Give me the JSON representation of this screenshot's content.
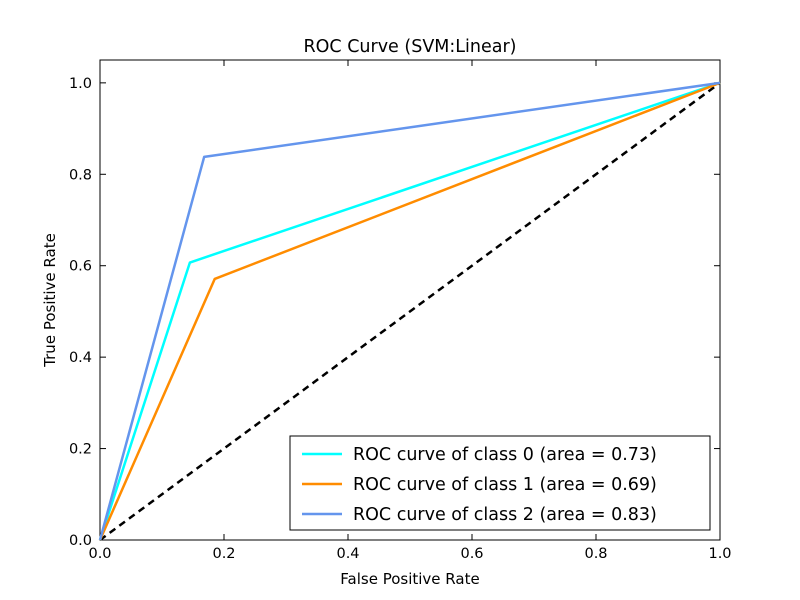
{
  "chart_data": {
    "type": "line",
    "title": "ROC Curve (SVM:Linear)",
    "xlabel": "False Positive Rate",
    "ylabel": "True Positive Rate",
    "xlim": [
      0.0,
      1.0
    ],
    "ylim": [
      0.0,
      1.05
    ],
    "xticks": [
      "0.0",
      "0.2",
      "0.4",
      "0.6",
      "0.8",
      "1.0"
    ],
    "yticks": [
      "0.0",
      "0.2",
      "0.4",
      "0.6",
      "0.8",
      "1.0"
    ],
    "grid": false,
    "legend_position": "lower-right",
    "series": [
      {
        "name": "ROC curve of class 0 (area = 0.73)",
        "color": "#00ffff",
        "x": [
          0.0,
          0.145,
          1.0
        ],
        "y": [
          0.0,
          0.607,
          1.0
        ]
      },
      {
        "name": "ROC curve of class 1 (area = 0.69)",
        "color": "#ff8c00",
        "x": [
          0.0,
          0.185,
          1.0
        ],
        "y": [
          0.0,
          0.571,
          1.0
        ]
      },
      {
        "name": "ROC curve of class 2 (area = 0.83)",
        "color": "#6495ed",
        "x": [
          0.0,
          0.168,
          1.0
        ],
        "y": [
          0.0,
          0.838,
          1.0
        ]
      }
    ],
    "reference_line": {
      "x": [
        0.0,
        1.0
      ],
      "y": [
        0.0,
        1.0
      ],
      "style": "dashed",
      "color": "#000000"
    }
  }
}
